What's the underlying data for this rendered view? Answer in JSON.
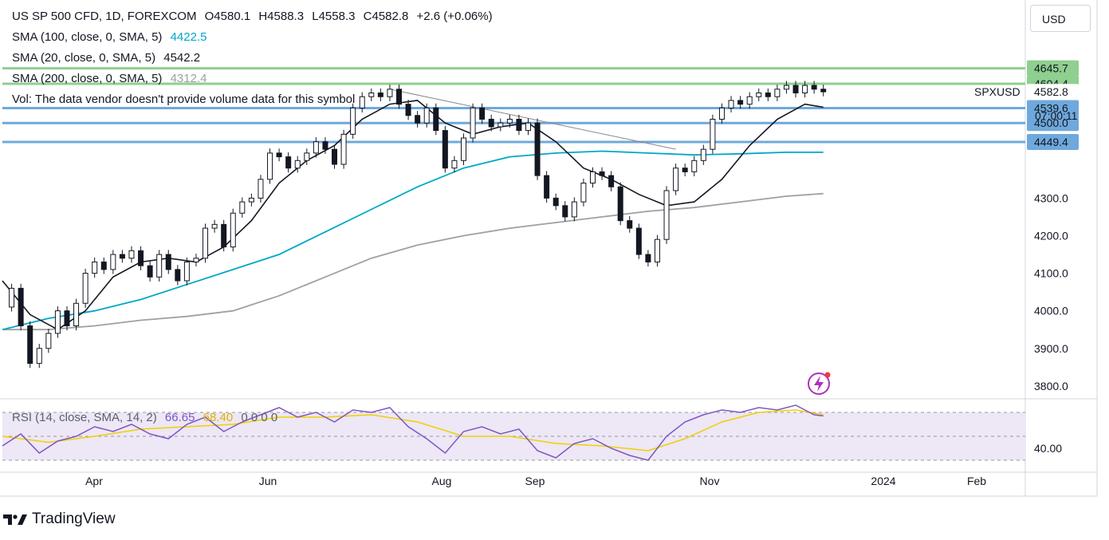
{
  "header": {
    "symbol": "US SP 500 CFD, 1D, FOREXCOM",
    "open": "O4580.1",
    "high": "H4588.3",
    "low": "L4558.3",
    "close": "C4582.8",
    "change": "+2.6 (+0.06%)",
    "sma100_label": "SMA (100, close, 0, SMA, 5)",
    "sma100_value": "4422.5",
    "sma20_label": "SMA (20, close, 0, SMA, 5)",
    "sma20_value": "4542.2",
    "sma200_label": "SMA (200, close, 0, SMA, 5)",
    "sma200_value": "4312.4",
    "vol_label": "Vol: The data vendor doesn't provide volume data for this symbol"
  },
  "currency_button": "USD",
  "symbol_tag": "SPXUSD",
  "countdown": "07:00:11",
  "rsi_legend": {
    "label": "RSI (14, close, SMA, 14, 2)",
    "rsi_value": "66.65",
    "sma_value": "68.40",
    "extra": "0  0  0  0"
  },
  "branding": "TradingView",
  "colors": {
    "sma20": "#131722",
    "sma100": "#00a8c6",
    "sma200": "#a0a0a0",
    "support_blue": "#6fa8dc",
    "resistance_green": "#8fcf8f",
    "rsi_line": "#7e57c2",
    "rsi_sma": "#f0d000",
    "rsi_band": "#ede7f6",
    "close_label": "#ffffff"
  },
  "chart_data": {
    "type": "candlestick",
    "y_axis": {
      "ticks": [
        4300.0,
        4200.0,
        4100.0,
        4000.0,
        3900.0,
        3800.0
      ],
      "range": [
        3770,
        4700
      ]
    },
    "x_axis": {
      "ticks": [
        "Apr",
        "Jun",
        "Aug",
        "Sep",
        "Nov",
        "2024",
        "Feb"
      ]
    },
    "price_labels": [
      {
        "value": "4645.7",
        "kind": "green"
      },
      {
        "value": "4604.4",
        "kind": "green"
      },
      {
        "value": "4582.8",
        "kind": "close"
      },
      {
        "value": "4539.6",
        "kind": "blue"
      },
      {
        "value": "4500.0",
        "kind": "blue"
      },
      {
        "value": "4449.4",
        "kind": "blue"
      }
    ],
    "horizontal_levels": [
      {
        "value": 4645.7,
        "kind": "green"
      },
      {
        "value": 4604.4,
        "kind": "green"
      },
      {
        "value": 4539.6,
        "kind": "blue"
      },
      {
        "value": 4500.0,
        "kind": "blue"
      },
      {
        "value": 4449.4,
        "kind": "blue"
      }
    ],
    "trendline": {
      "from": {
        "x": 0.42,
        "y": 4590
      },
      "to": {
        "x": 0.73,
        "y": 4430
      }
    },
    "close_path": [
      [
        0.0,
        4010
      ],
      [
        0.01,
        4060
      ],
      [
        0.02,
        3960
      ],
      [
        0.03,
        3860
      ],
      [
        0.04,
        3900
      ],
      [
        0.05,
        3940
      ],
      [
        0.06,
        4000
      ],
      [
        0.07,
        3960
      ],
      [
        0.08,
        4020
      ],
      [
        0.09,
        4100
      ],
      [
        0.1,
        4130
      ],
      [
        0.11,
        4110
      ],
      [
        0.12,
        4150
      ],
      [
        0.13,
        4140
      ],
      [
        0.14,
        4160
      ],
      [
        0.15,
        4120
      ],
      [
        0.16,
        4090
      ],
      [
        0.17,
        4150
      ],
      [
        0.18,
        4110
      ],
      [
        0.19,
        4080
      ],
      [
        0.2,
        4130
      ],
      [
        0.21,
        4140
      ],
      [
        0.22,
        4220
      ],
      [
        0.23,
        4230
      ],
      [
        0.24,
        4170
      ],
      [
        0.25,
        4260
      ],
      [
        0.26,
        4290
      ],
      [
        0.27,
        4300
      ],
      [
        0.28,
        4350
      ],
      [
        0.29,
        4420
      ],
      [
        0.3,
        4410
      ],
      [
        0.31,
        4380
      ],
      [
        0.32,
        4400
      ],
      [
        0.33,
        4420
      ],
      [
        0.34,
        4450
      ],
      [
        0.35,
        4430
      ],
      [
        0.36,
        4390
      ],
      [
        0.37,
        4470
      ],
      [
        0.38,
        4540
      ],
      [
        0.39,
        4570
      ],
      [
        0.4,
        4580
      ],
      [
        0.41,
        4570
      ],
      [
        0.42,
        4590
      ],
      [
        0.43,
        4550
      ],
      [
        0.44,
        4520
      ],
      [
        0.45,
        4500
      ],
      [
        0.46,
        4540
      ],
      [
        0.47,
        4480
      ],
      [
        0.48,
        4380
      ],
      [
        0.49,
        4400
      ],
      [
        0.5,
        4460
      ],
      [
        0.51,
        4540
      ],
      [
        0.52,
        4510
      ],
      [
        0.53,
        4490
      ],
      [
        0.54,
        4500
      ],
      [
        0.55,
        4510
      ],
      [
        0.56,
        4480
      ],
      [
        0.57,
        4500
      ],
      [
        0.58,
        4360
      ],
      [
        0.59,
        4300
      ],
      [
        0.6,
        4280
      ],
      [
        0.61,
        4250
      ],
      [
        0.62,
        4290
      ],
      [
        0.63,
        4340
      ],
      [
        0.64,
        4370
      ],
      [
        0.65,
        4360
      ],
      [
        0.66,
        4330
      ],
      [
        0.67,
        4240
      ],
      [
        0.68,
        4220
      ],
      [
        0.69,
        4150
      ],
      [
        0.7,
        4130
      ],
      [
        0.71,
        4190
      ],
      [
        0.72,
        4320
      ],
      [
        0.73,
        4380
      ],
      [
        0.74,
        4370
      ],
      [
        0.75,
        4400
      ],
      [
        0.76,
        4430
      ],
      [
        0.77,
        4510
      ],
      [
        0.78,
        4540
      ],
      [
        0.79,
        4560
      ],
      [
        0.8,
        4550
      ],
      [
        0.81,
        4570
      ],
      [
        0.82,
        4580
      ],
      [
        0.83,
        4570
      ],
      [
        0.84,
        4590
      ],
      [
        0.85,
        4600
      ],
      [
        0.86,
        4580
      ],
      [
        0.87,
        4600
      ],
      [
        0.88,
        4590
      ],
      [
        0.89,
        4583
      ]
    ],
    "sma20_path": [
      [
        0.0,
        4080
      ],
      [
        0.03,
        3990
      ],
      [
        0.06,
        3950
      ],
      [
        0.09,
        4000
      ],
      [
        0.12,
        4090
      ],
      [
        0.15,
        4130
      ],
      [
        0.18,
        4140
      ],
      [
        0.21,
        4130
      ],
      [
        0.24,
        4170
      ],
      [
        0.27,
        4240
      ],
      [
        0.3,
        4340
      ],
      [
        0.33,
        4400
      ],
      [
        0.36,
        4440
      ],
      [
        0.39,
        4510
      ],
      [
        0.42,
        4550
      ],
      [
        0.45,
        4560
      ],
      [
        0.48,
        4500
      ],
      [
        0.51,
        4470
      ],
      [
        0.54,
        4490
      ],
      [
        0.57,
        4500
      ],
      [
        0.6,
        4450
      ],
      [
        0.63,
        4380
      ],
      [
        0.66,
        4350
      ],
      [
        0.69,
        4310
      ],
      [
        0.72,
        4280
      ],
      [
        0.75,
        4290
      ],
      [
        0.78,
        4350
      ],
      [
        0.81,
        4440
      ],
      [
        0.84,
        4510
      ],
      [
        0.87,
        4550
      ],
      [
        0.89,
        4542
      ]
    ],
    "sma100_path": [
      [
        0.0,
        3950
      ],
      [
        0.05,
        3980
      ],
      [
        0.1,
        4000
      ],
      [
        0.15,
        4030
      ],
      [
        0.2,
        4070
      ],
      [
        0.25,
        4110
      ],
      [
        0.3,
        4150
      ],
      [
        0.35,
        4210
      ],
      [
        0.4,
        4270
      ],
      [
        0.45,
        4330
      ],
      [
        0.5,
        4380
      ],
      [
        0.55,
        4410
      ],
      [
        0.6,
        4420
      ],
      [
        0.65,
        4425
      ],
      [
        0.7,
        4420
      ],
      [
        0.75,
        4415
      ],
      [
        0.8,
        4418
      ],
      [
        0.85,
        4422
      ],
      [
        0.89,
        4422
      ]
    ],
    "sma200_path": [
      [
        0.0,
        3950
      ],
      [
        0.05,
        3950
      ],
      [
        0.1,
        3960
      ],
      [
        0.15,
        3975
      ],
      [
        0.2,
        3985
      ],
      [
        0.25,
        4000
      ],
      [
        0.3,
        4040
      ],
      [
        0.35,
        4090
      ],
      [
        0.4,
        4140
      ],
      [
        0.45,
        4175
      ],
      [
        0.5,
        4200
      ],
      [
        0.55,
        4220
      ],
      [
        0.6,
        4235
      ],
      [
        0.65,
        4250
      ],
      [
        0.7,
        4265
      ],
      [
        0.75,
        4275
      ],
      [
        0.8,
        4290
      ],
      [
        0.85,
        4305
      ],
      [
        0.89,
        4312
      ]
    ],
    "rsi": {
      "tick": "40.00",
      "range": [
        20,
        80
      ],
      "upper": 70,
      "lower": 30,
      "mid": 50,
      "rsi_path": [
        [
          0.0,
          42
        ],
        [
          0.02,
          52
        ],
        [
          0.04,
          36
        ],
        [
          0.06,
          46
        ],
        [
          0.08,
          50
        ],
        [
          0.1,
          58
        ],
        [
          0.12,
          54
        ],
        [
          0.14,
          60
        ],
        [
          0.16,
          52
        ],
        [
          0.18,
          48
        ],
        [
          0.2,
          60
        ],
        [
          0.22,
          66
        ],
        [
          0.24,
          54
        ],
        [
          0.26,
          62
        ],
        [
          0.28,
          68
        ],
        [
          0.3,
          74
        ],
        [
          0.32,
          66
        ],
        [
          0.34,
          70
        ],
        [
          0.36,
          62
        ],
        [
          0.38,
          72
        ],
        [
          0.4,
          70
        ],
        [
          0.42,
          74
        ],
        [
          0.44,
          58
        ],
        [
          0.46,
          48
        ],
        [
          0.48,
          36
        ],
        [
          0.5,
          54
        ],
        [
          0.52,
          58
        ],
        [
          0.54,
          52
        ],
        [
          0.56,
          56
        ],
        [
          0.58,
          38
        ],
        [
          0.6,
          32
        ],
        [
          0.62,
          44
        ],
        [
          0.64,
          48
        ],
        [
          0.66,
          40
        ],
        [
          0.68,
          34
        ],
        [
          0.7,
          30
        ],
        [
          0.72,
          50
        ],
        [
          0.74,
          62
        ],
        [
          0.76,
          68
        ],
        [
          0.78,
          72
        ],
        [
          0.8,
          70
        ],
        [
          0.82,
          74
        ],
        [
          0.84,
          72
        ],
        [
          0.86,
          76
        ],
        [
          0.88,
          68
        ],
        [
          0.89,
          67
        ]
      ],
      "sma_path": [
        [
          0.0,
          50
        ],
        [
          0.05,
          45
        ],
        [
          0.1,
          50
        ],
        [
          0.15,
          56
        ],
        [
          0.2,
          58
        ],
        [
          0.25,
          60
        ],
        [
          0.3,
          66
        ],
        [
          0.35,
          66
        ],
        [
          0.4,
          68
        ],
        [
          0.45,
          62
        ],
        [
          0.5,
          50
        ],
        [
          0.55,
          50
        ],
        [
          0.6,
          44
        ],
        [
          0.65,
          42
        ],
        [
          0.7,
          38
        ],
        [
          0.74,
          48
        ],
        [
          0.78,
          62
        ],
        [
          0.82,
          70
        ],
        [
          0.86,
          72
        ],
        [
          0.89,
          68
        ]
      ]
    }
  }
}
